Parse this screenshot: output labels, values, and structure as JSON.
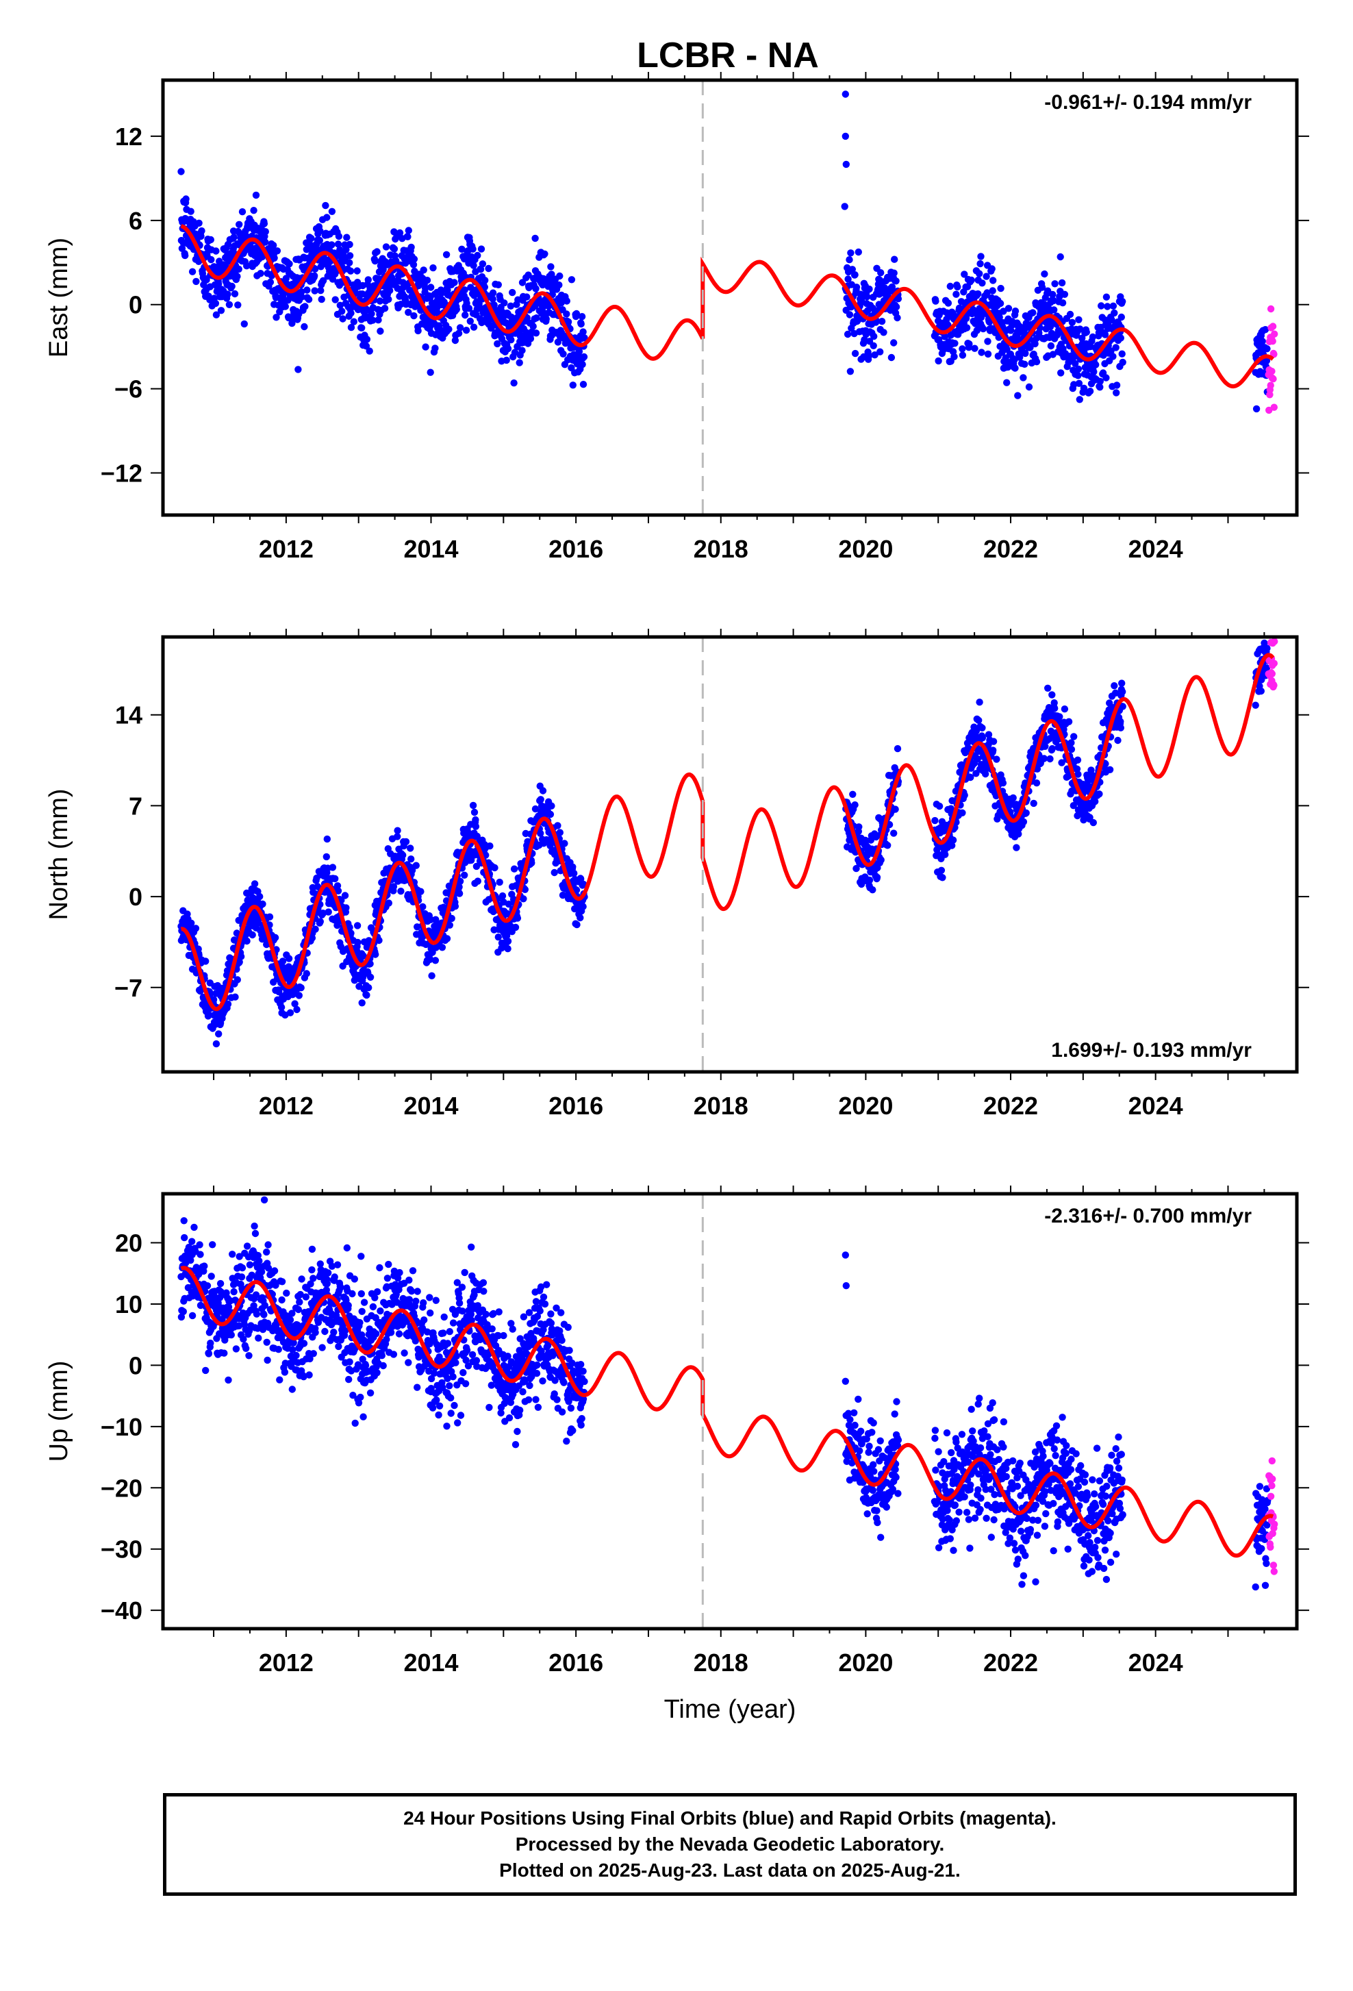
{
  "title": "LCBR - NA",
  "footer": {
    "line1": "24 Hour Positions Using Final Orbits (blue) and Rapid Orbits (magenta).",
    "line2": "Processed by the Nevada Geodetic Laboratory.",
    "line3": "Plotted on 2025-Aug-23. Last data on 2025-Aug-21."
  },
  "colors": {
    "final": "#0000ff",
    "rapid": "#ff22ee",
    "model": "#ff0000",
    "event_line": "#bbbbbb"
  },
  "chart_data": [
    {
      "type": "scatter",
      "component": "East",
      "ylabel": "East (mm)",
      "xlabel": "",
      "rate": "-0.961+/- 0.194 mm/yr",
      "rate_position": "top-right",
      "xlim": [
        2010.3,
        2025.95
      ],
      "ylim": [
        -15,
        16
      ],
      "x_ticks": [
        "2012",
        "2014",
        "2016",
        "2018",
        "2020",
        "2022",
        "2024"
      ],
      "y_ticks": [
        "12",
        "6",
        "0",
        "-6",
        "-12"
      ],
      "event_line_x": 2017.75,
      "data_segments": [
        [
          2010.55,
          2016.12
        ],
        [
          2019.72,
          2020.45
        ],
        [
          2020.95,
          2023.55
        ],
        [
          2025.38,
          2025.55
        ]
      ],
      "rapid_segment": [
        2025.56,
        2025.64
      ],
      "model": {
        "pre_event": {
          "x0": 2010.55,
          "y0": 4.0,
          "rate": -0.961,
          "amplitude": 1.6,
          "phase_year": 0.55
        },
        "offset_at_event": 4.6,
        "post_event": {
          "y_at_event": 2.9,
          "rate": -0.961,
          "amplitude": 1.3,
          "phase_year": 0.55
        }
      },
      "scatter_sd": 1.4,
      "outliers": [
        {
          "x": 2019.72,
          "y": 15
        },
        {
          "x": 2019.72,
          "y": 12
        },
        {
          "x": 2019.73,
          "y": 10
        },
        {
          "x": 2019.71,
          "y": 7
        }
      ]
    },
    {
      "type": "scatter",
      "component": "North",
      "ylabel": "North (mm)",
      "xlabel": "",
      "rate": "1.699+/- 0.193 mm/yr",
      "rate_position": "bottom-right",
      "xlim": [
        2010.3,
        2025.95
      ],
      "ylim": [
        -13.5,
        20
      ],
      "x_ticks": [
        "2012",
        "2014",
        "2016",
        "2018",
        "2020",
        "2022",
        "2024"
      ],
      "y_ticks": [
        "14",
        "7",
        "0",
        "-7"
      ],
      "event_line_x": 2017.75,
      "data_segments": [
        [
          2010.55,
          2016.12
        ],
        [
          2019.72,
          2020.45
        ],
        [
          2020.95,
          2023.55
        ],
        [
          2025.38,
          2025.55
        ]
      ],
      "rapid_segment": [
        2025.56,
        2025.64
      ],
      "model": {
        "pre_event": {
          "x0": 2010.55,
          "y0": -6.0,
          "rate": 1.699,
          "amplitude": 3.5,
          "phase_year": 0.55
        },
        "offset_at_event": 3.5,
        "post_event": {
          "y_at_event": 3.0,
          "rate": 1.699,
          "amplitude": 3.4,
          "phase_year": 0.55
        }
      },
      "scatter_sd": 1.1,
      "outliers": []
    },
    {
      "type": "scatter",
      "component": "Up",
      "ylabel": "Up (mm)",
      "xlabel": "Time (year)",
      "rate": "-2.316+/- 0.700 mm/yr",
      "rate_position": "top-right",
      "xlim": [
        2010.3,
        2025.95
      ],
      "ylim": [
        -43,
        28
      ],
      "x_ticks": [
        "2012",
        "2014",
        "2016",
        "2018",
        "2020",
        "2022",
        "2024"
      ],
      "y_ticks": [
        "20",
        "10",
        "0",
        "-10",
        "-20",
        "-30",
        "-40"
      ],
      "event_line_x": 2017.75,
      "data_segments": [
        [
          2010.55,
          2016.12
        ],
        [
          2019.72,
          2020.45
        ],
        [
          2020.95,
          2023.55
        ],
        [
          2025.38,
          2025.55
        ]
      ],
      "rapid_segment": [
        2025.56,
        2025.64
      ],
      "model": {
        "pre_event": {
          "x0": 2010.55,
          "y0": 12.0,
          "rate": -2.316,
          "amplitude": 4.0,
          "phase_year": 0.6
        },
        "offset_at_event": 6.0,
        "post_event": {
          "y_at_event": -8.0,
          "rate": -2.316,
          "amplitude": 3.8,
          "phase_year": 0.6
        }
      },
      "scatter_sd": 4.2,
      "outliers": [
        {
          "x": 2019.72,
          "y": 18
        },
        {
          "x": 2019.73,
          "y": 13
        },
        {
          "x": 2011.7,
          "y": 27
        }
      ]
    }
  ]
}
